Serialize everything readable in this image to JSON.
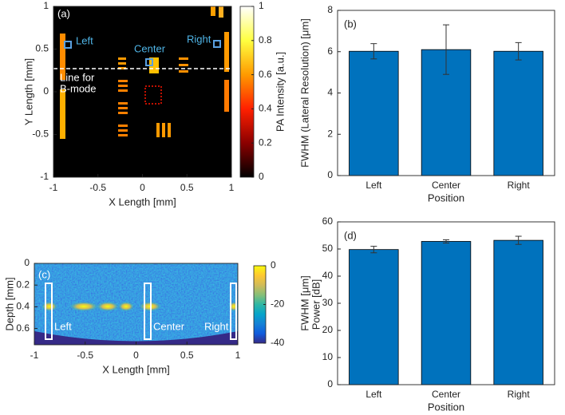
{
  "chart_data": [
    {
      "type": "image",
      "label": "(a)",
      "xlabel": "X Length [mm]",
      "ylabel": "Y Length [mm]",
      "xlim": [
        -1,
        1
      ],
      "ylim": [
        -1,
        1
      ],
      "xticks": [
        -1,
        -0.5,
        0,
        0.5,
        1
      ],
      "yticks": [
        -1,
        -0.5,
        0,
        0.5,
        1
      ],
      "annotations": [
        "Left",
        "Center",
        "Right",
        "Line for",
        "B-mode"
      ],
      "colorbar": {
        "label": "PA Intensity [a.u.]",
        "lim": [
          0,
          1
        ],
        "ticks": [
          0,
          0.2,
          0.4,
          0.6,
          0.8,
          1
        ],
        "colors": [
          "#000000",
          "#8b0000",
          "#ff2000",
          "#ff9a00",
          "#ffff40",
          "#ffffff"
        ]
      }
    },
    {
      "type": "bar",
      "label": "(b)",
      "xlabel": "Position",
      "ylabel": "FWHM (Lateral Resolution) [μm]",
      "categories": [
        "Left",
        "Center",
        "Right"
      ],
      "values": [
        6.02,
        6.1,
        6.02
      ],
      "errors": [
        0.37,
        1.2,
        0.42
      ],
      "color": "#0072bd",
      "ylim": [
        0,
        8
      ],
      "yticks": [
        0,
        2,
        4,
        6,
        8
      ]
    },
    {
      "type": "image",
      "label": "(c)",
      "xlabel": "X Length [mm]",
      "ylabel": "Depth [mm]",
      "xlim": [
        -1,
        1
      ],
      "ylim": [
        0,
        0.75
      ],
      "y_reversed": true,
      "xticks": [
        -1,
        -0.5,
        0,
        0.5,
        1
      ],
      "yticks": [
        0,
        0.2,
        0.4,
        0.6
      ],
      "annotations": [
        "Left",
        "Center",
        "Right"
      ],
      "colorbar": {
        "label": "Power [dB]",
        "lim": [
          -40,
          0
        ],
        "ticks": [
          -40,
          -20,
          0
        ],
        "colors": [
          "#352a87",
          "#0f5cdd",
          "#1481d6",
          "#06a4ca",
          "#2eb7a4",
          "#87bf77",
          "#d1bb59",
          "#fec832",
          "#f9fb0e"
        ]
      }
    },
    {
      "type": "bar",
      "label": "(d)",
      "xlabel": "Position",
      "ylabel": "FWHM [μm]",
      "categories": [
        "Left",
        "Center",
        "Right"
      ],
      "values": [
        49.8,
        52.8,
        53.2
      ],
      "errors": [
        1.2,
        0.6,
        1.5
      ],
      "color": "#0072bd",
      "ylim": [
        0,
        60
      ],
      "yticks": [
        0,
        10,
        20,
        30,
        40,
        50,
        60
      ]
    }
  ]
}
